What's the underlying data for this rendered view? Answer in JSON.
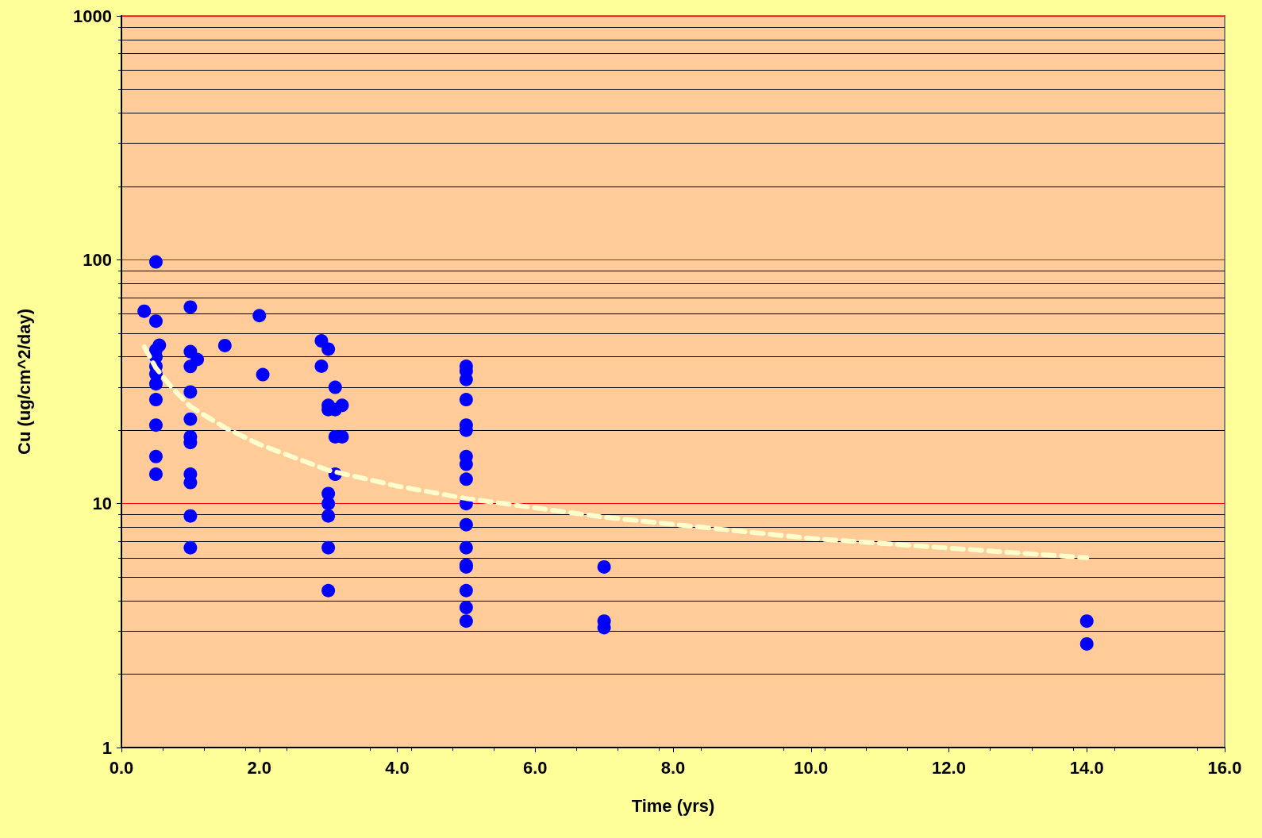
{
  "chart_data": {
    "type": "scatter",
    "xlabel": "Time (yrs)",
    "ylabel": "Cu (ug/cm^2/day)",
    "log": "y",
    "grid": "y",
    "marker": "circle",
    "xlim": [
      0,
      16
    ],
    "xticks": [
      {
        "value": 0,
        "label": "0.0"
      },
      {
        "value": 2,
        "label": "2.0"
      },
      {
        "value": 4,
        "label": "4.0"
      },
      {
        "value": 6,
        "label": "6.0"
      },
      {
        "value": 8,
        "label": "8.0"
      },
      {
        "value": 10,
        "label": "10.0"
      },
      {
        "value": 12,
        "label": "12.0"
      },
      {
        "value": 14,
        "label": "14.0"
      },
      {
        "value": 16,
        "label": "16.0"
      }
    ],
    "ylim": [
      1,
      1000
    ],
    "yticks": [
      1,
      10,
      100,
      1000
    ],
    "series": [
      {
        "color": "#0000ff",
        "x": [
          0.33,
          0.5,
          0.5,
          0.55,
          0.5,
          0.5,
          0.5,
          0.5,
          0.5,
          0.5,
          0.5,
          0.5,
          0.5,
          1,
          1,
          1,
          1,
          1,
          1,
          1,
          1,
          1,
          1,
          1,
          1.1,
          1.5,
          2,
          2.05,
          2.9,
          2.9,
          3,
          3,
          3,
          3,
          3,
          3,
          3,
          3,
          3.1,
          3.1,
          3.1,
          3.1,
          3.2,
          3.2,
          5,
          5,
          5,
          5,
          5,
          5,
          5,
          5,
          5,
          5,
          5,
          5,
          5,
          5,
          5,
          5,
          5,
          7,
          7,
          7,
          14,
          14
        ],
        "values": [
          61.5,
          98,
          56,
          44.6,
          42.6,
          40,
          36.6,
          34,
          31,
          26.7,
          21,
          15.6,
          13.2,
          64,
          42,
          36.5,
          28.7,
          22.2,
          18.8,
          17.8,
          13.2,
          12.2,
          8.9,
          6.6,
          39,
          44.5,
          59,
          33.8,
          46.5,
          36.6,
          43,
          25.3,
          24.3,
          11,
          10,
          8.9,
          6.6,
          4.4,
          30,
          24.3,
          18.8,
          13.2,
          25.3,
          18.8,
          36.6,
          35,
          32.3,
          26.7,
          21,
          20,
          15.6,
          14.5,
          12.6,
          10,
          8.2,
          6.6,
          5.6,
          5.5,
          4.4,
          3.75,
          3.3,
          5.5,
          3.3,
          3.1,
          3.3,
          2.66
        ]
      },
      {
        "type": "line",
        "color": "#ffffcc",
        "line_style": "dashed",
        "marker": "none",
        "x": [
          0.33,
          0.5,
          0.75,
          1,
          1.5,
          2,
          3,
          4,
          5,
          7,
          10,
          14
        ],
        "values": [
          44,
          36,
          29.5,
          25,
          20.5,
          17.5,
          13.7,
          11.8,
          10.5,
          8.8,
          7.2,
          6.0
        ]
      }
    ]
  }
}
